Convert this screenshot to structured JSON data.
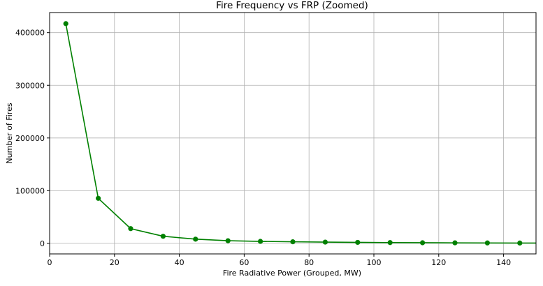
{
  "chart_data": {
    "type": "line",
    "title": "Fire Frequency vs FRP (Zoomed)",
    "xlabel": "Fire Radiative Power (Grouped, MW)",
    "ylabel": "Number of Fires",
    "xlim": [
      0,
      150
    ],
    "ylim": [
      -20000,
      438000
    ],
    "xticks": [
      0,
      20,
      40,
      60,
      80,
      100,
      120,
      140
    ],
    "yticks": [
      0,
      100000,
      200000,
      300000,
      400000
    ],
    "grid": true,
    "series": [
      {
        "color": "#008000",
        "marker": "circle",
        "x": [
          5,
          15,
          25,
          35,
          45,
          55,
          65,
          75,
          85,
          95,
          105,
          115,
          125,
          135,
          145
        ],
        "y": [
          417000,
          85500,
          28000,
          13500,
          8000,
          5000,
          3800,
          3000,
          2400,
          1900,
          1500,
          1200,
          1000,
          800,
          650
        ]
      }
    ],
    "line_end_x": 150,
    "line_end_y": 600
  }
}
